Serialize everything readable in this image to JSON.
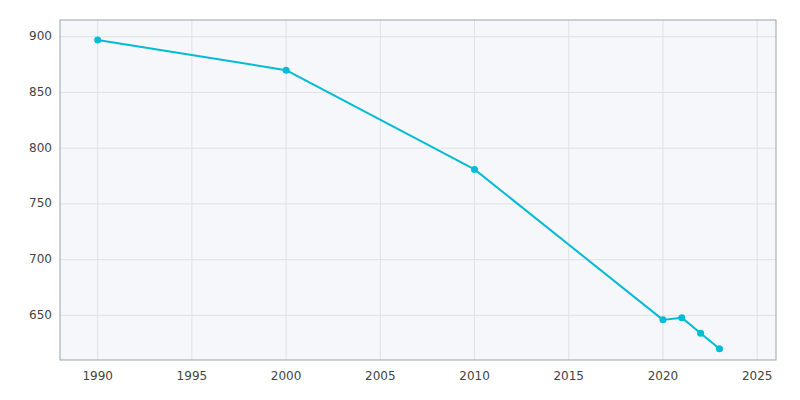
{
  "chart_data": {
    "type": "line",
    "x": [
      1990,
      2000,
      2010,
      2020,
      2021,
      2022,
      2023
    ],
    "values": [
      897,
      870,
      781,
      646,
      648,
      634,
      620
    ],
    "color": "#00bcd4",
    "marker": "circle",
    "xlim": [
      1988,
      2026
    ],
    "ylim": [
      610,
      915
    ],
    "xticks": [
      1990,
      1995,
      2000,
      2005,
      2010,
      2015,
      2020,
      2025
    ],
    "yticks": [
      650,
      700,
      750,
      800,
      850,
      900
    ],
    "grid": true
  }
}
